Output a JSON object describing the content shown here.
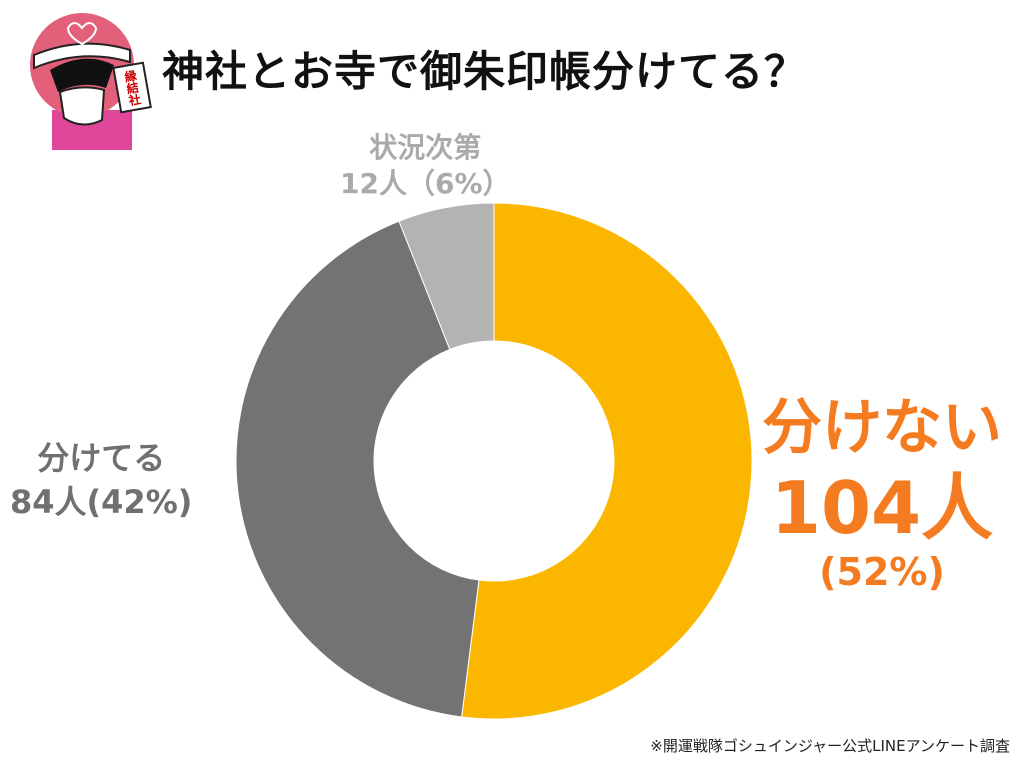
{
  "title": "神社とお寺で御朱印帳分けてる？",
  "footer": "※開運戦隊ゴシュインジャー公式LINEアンケート調査",
  "mascot": {
    "icon": "pink-ranger-mascot-holding-goshuin-icon",
    "card_text": "縁結社"
  },
  "chart_data": {
    "type": "pie",
    "donut": true,
    "title": "神社とお寺で御朱印帳分けてる？",
    "start": "top",
    "direction": "clockwise",
    "slices": [
      {
        "name": "分けない",
        "count_label": "104人",
        "percent_label": "(52%)",
        "value": 104,
        "percent": 52,
        "color": "#FBB600",
        "label_color": "#F57B20"
      },
      {
        "name": "分けてる",
        "count_label": "84人(42%)",
        "value": 84,
        "percent": 42,
        "color": "#737373",
        "label_color": "#707070"
      },
      {
        "name": "状況次第",
        "count_label": "12人（6%）",
        "value": 12,
        "percent": 6,
        "color": "#B3B3B3",
        "label_color": "#AAAAAA"
      }
    ]
  }
}
